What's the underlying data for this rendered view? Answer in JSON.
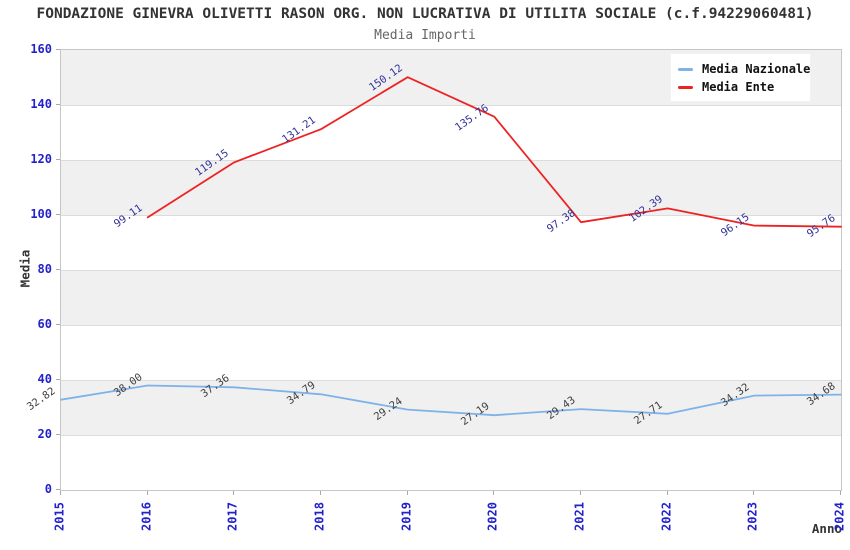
{
  "title": "FONDAZIONE GINEVRA OLIVETTI RASON ORG. NON LUCRATIVA DI UTILITA SOCIALE (c.f.94229060481)",
  "subtitle": "Media Importi",
  "axes": {
    "y_label": "Media",
    "x_label": "Anno",
    "y_ticks": [
      0,
      20,
      40,
      60,
      80,
      100,
      120,
      140,
      160
    ],
    "x_ticks": [
      "2015",
      "2016",
      "2017",
      "2018",
      "2019",
      "2020",
      "2021",
      "2022",
      "2023",
      "2024"
    ]
  },
  "legend": {
    "position": "top-right",
    "items": [
      {
        "label": "Media Nazionale",
        "color": "#7fb2e8"
      },
      {
        "label": "Media Ente",
        "color": "#ee2222"
      }
    ]
  },
  "colors": {
    "axis_tick_text": "#2222cc",
    "band_fill": "#f0f0f0",
    "gridline": "#dcdcdc",
    "plot_border": "#c6c6c6",
    "title_text": "#333333"
  },
  "chart_data": {
    "type": "line",
    "title": "FONDAZIONE GINEVRA OLIVETTI RASON ORG. NON LUCRATIVA DI UTILITA SOCIALE (c.f.94229060481)",
    "subtitle": "Media Importi",
    "xlabel": "Anno",
    "ylabel": "Media",
    "ylim": [
      0,
      160
    ],
    "grid": "horizontal-bands-alternating",
    "legend_position": "top-right",
    "x": [
      "2015",
      "2016",
      "2017",
      "2018",
      "2019",
      "2020",
      "2021",
      "2022",
      "2023",
      "2024"
    ],
    "series": [
      {
        "name": "Media Nazionale",
        "color": "#7fb2e8",
        "label_color": "#404040",
        "values": [
          32.82,
          38.0,
          37.36,
          34.79,
          29.24,
          27.19,
          29.43,
          27.71,
          34.32,
          34.68
        ]
      },
      {
        "name": "Media Ente",
        "color": "#ee2222",
        "label_color": "#333399",
        "values": [
          null,
          99.11,
          119.15,
          131.21,
          150.12,
          135.76,
          97.38,
          102.39,
          96.15,
          95.76
        ]
      }
    ]
  }
}
